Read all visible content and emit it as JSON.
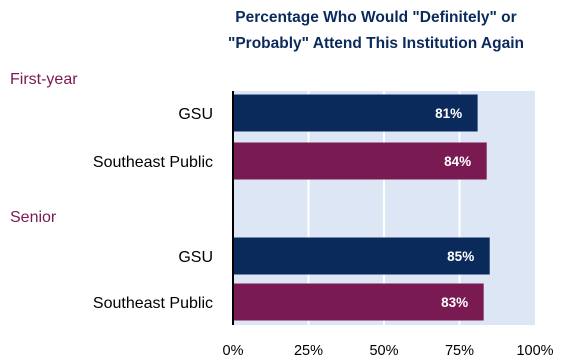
{
  "chart_data": {
    "type": "bar",
    "orientation": "horizontal",
    "title_lines": [
      "Percentage Who Would \"Definitely\" or",
      "\"Probably\" Attend This Institution Again"
    ],
    "groups": [
      {
        "label": "First-year",
        "bars": [
          {
            "category": "GSU",
            "value": 81,
            "label": "81%"
          },
          {
            "category": "Southeast Public",
            "value": 84,
            "label": "84%"
          }
        ]
      },
      {
        "label": "Senior",
        "bars": [
          {
            "category": "GSU",
            "value": 85,
            "label": "85%"
          },
          {
            "category": "Southeast Public",
            "value": 83,
            "label": "83%"
          }
        ]
      }
    ],
    "xlim": [
      0,
      100
    ],
    "x_ticks": [
      {
        "value": 0,
        "label": "0%"
      },
      {
        "value": 25,
        "label": "25%"
      },
      {
        "value": 50,
        "label": "50%"
      },
      {
        "value": 75,
        "label": "75%"
      },
      {
        "value": 100,
        "label": "100%"
      }
    ],
    "grid": true,
    "legend": "none",
    "colors": {
      "GSU": "#0b2a5c",
      "Southeast Public": "#7a1a52",
      "group_label": "#7a1a52",
      "title": "#0b2a5c",
      "plot_background": "#dce6f5",
      "gridline": "#ffffff",
      "axis": "#000000",
      "value_label": "#ffffff"
    }
  }
}
